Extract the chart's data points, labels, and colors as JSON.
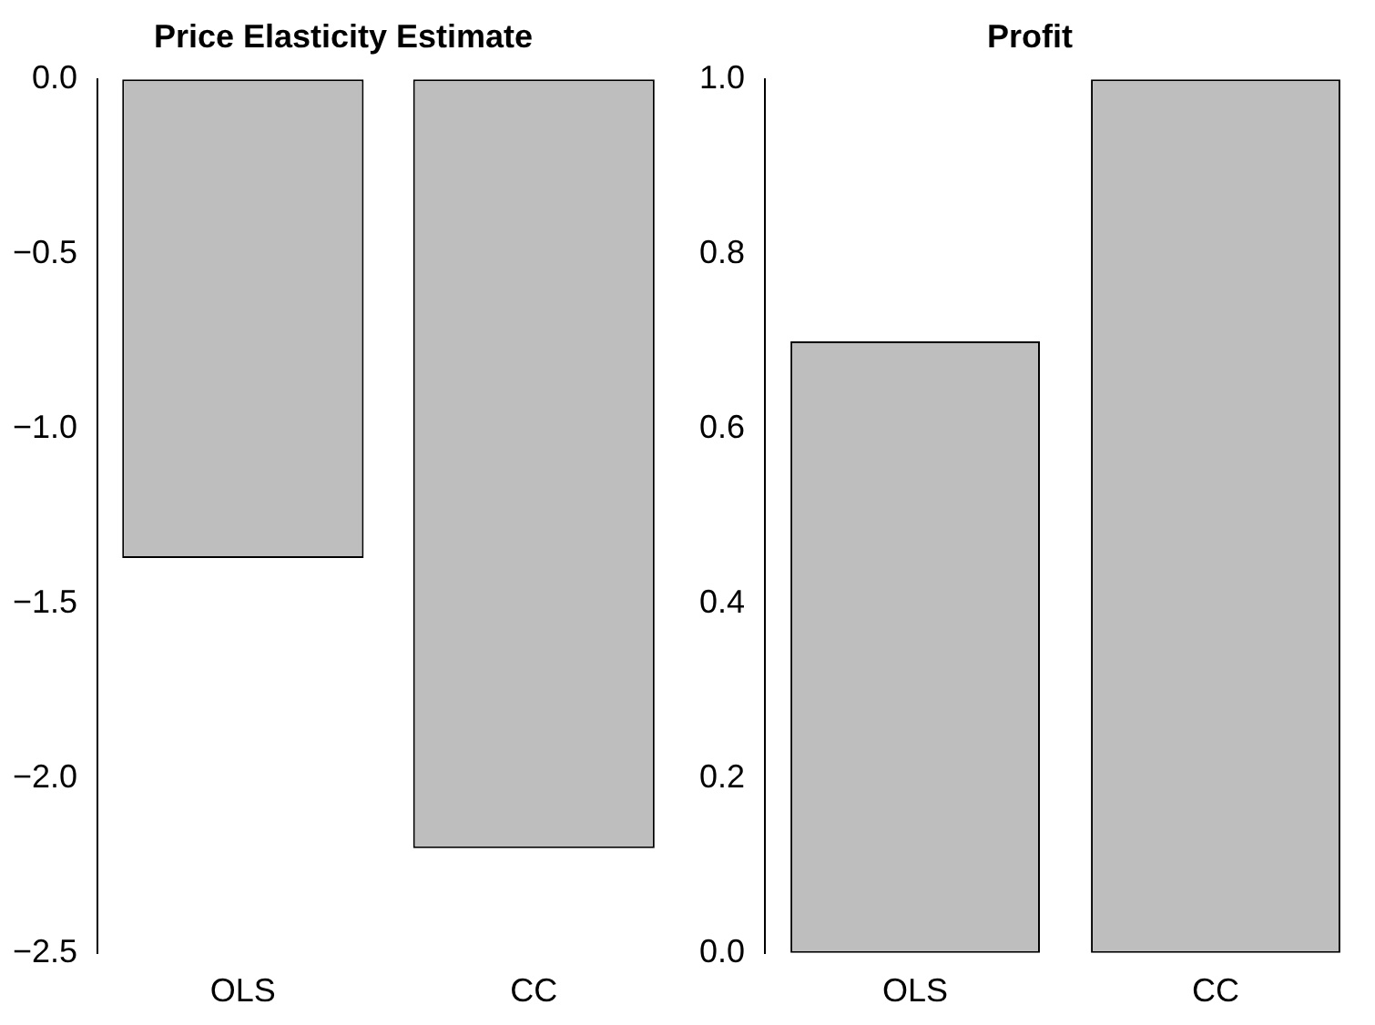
{
  "chart_data": [
    {
      "type": "bar",
      "title": "Price Elasticity Estimate",
      "categories": [
        "OLS",
        "CC"
      ],
      "values": [
        -1.37,
        -2.2
      ],
      "color": "#bebebe",
      "ylim": [
        -2.5,
        0
      ],
      "yticks": [
        {
          "value": -2.5,
          "label": "−2.5"
        },
        {
          "value": -2,
          "label": "−2.0"
        },
        {
          "value": -1.5,
          "label": "−1.5"
        },
        {
          "value": -1,
          "label": "−1.0"
        },
        {
          "value": -0.5,
          "label": "−0.5"
        },
        {
          "value": 0,
          "label": "0.0"
        }
      ],
      "grid": false
    },
    {
      "type": "bar",
      "title": "Profit",
      "categories": [
        "OLS",
        "CC"
      ],
      "values": [
        0.7,
        1.0
      ],
      "color": "#bebebe",
      "ylim": [
        0,
        1
      ],
      "yticks": [
        {
          "value": 0,
          "label": "0.0"
        },
        {
          "value": 0.2,
          "label": "0.2"
        },
        {
          "value": 0.4,
          "label": "0.4"
        },
        {
          "value": 0.6,
          "label": "0.6"
        },
        {
          "value": 0.8,
          "label": "0.8"
        },
        {
          "value": 1,
          "label": "1.0"
        }
      ],
      "grid": false
    }
  ]
}
